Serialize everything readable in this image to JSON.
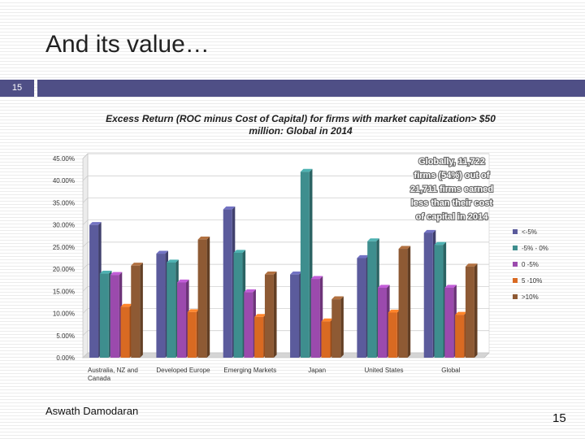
{
  "slide": {
    "title": "And its value…",
    "number_badge": "15",
    "author": "Aswath Damodaran",
    "page_number": "15"
  },
  "chart_data": {
    "type": "bar",
    "title_lines": [
      "Excess Return (ROC minus Cost of Capital) for firms with market capitalization> $50",
      "million: Global in 2014"
    ],
    "categories": [
      [
        "Australia, NZ and",
        "Canada"
      ],
      [
        "Developed Europe"
      ],
      [
        "Emerging Markets"
      ],
      [
        "Japan"
      ],
      [
        "United States"
      ],
      [
        "Global"
      ]
    ],
    "series": [
      {
        "name": "<-5%",
        "color": "#5b5b9c",
        "values": [
          30.0,
          23.5,
          33.5,
          18.8,
          22.5,
          28.2
        ]
      },
      {
        "name": "-5% - 0%",
        "color": "#3e8e8e",
        "values": [
          19.0,
          21.5,
          23.7,
          42.0,
          26.3,
          25.5
        ]
      },
      {
        "name": "0 -5%",
        "color": "#9b4aad",
        "values": [
          18.7,
          17.0,
          14.8,
          17.8,
          15.8,
          15.8
        ]
      },
      {
        "name": "5 -10%",
        "color": "#d96a22",
        "values": [
          11.5,
          10.3,
          9.2,
          8.2,
          10.2,
          9.7
        ]
      },
      {
        "name": ">10%",
        "color": "#8e5a34",
        "values": [
          20.8,
          26.7,
          18.8,
          13.2,
          24.6,
          20.6
        ]
      }
    ],
    "yticks": [
      "0.00%",
      "5.00%",
      "10.00%",
      "15.00%",
      "20.00%",
      "25.00%",
      "30.00%",
      "35.00%",
      "40.00%",
      "45.00%"
    ],
    "ylim": [
      0,
      45
    ],
    "legend_position": "right",
    "annotation_lines": [
      "Globally, 11,722",
      "firms (54%) out of",
      "21,711 firms earned",
      "less than their cost",
      "of capital in 2014"
    ]
  }
}
